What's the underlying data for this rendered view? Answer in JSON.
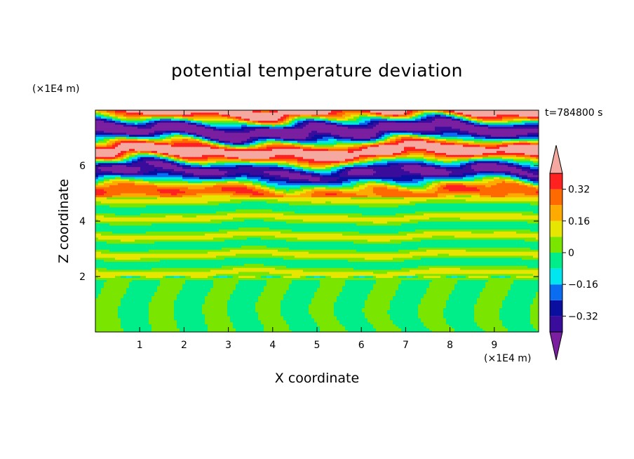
{
  "chart_data": {
    "type": "heatmap",
    "title": "potential temperature deviation",
    "xlabel": "X coordinate",
    "ylabel": "Z coordinate",
    "x_unit": "(×1E4 m)",
    "y_unit": "(×1E4 m)",
    "time_label": "t=784800 s",
    "xlim": [
      0,
      10
    ],
    "ylim": [
      0,
      8
    ],
    "x_ticks": [
      "1",
      "2",
      "3",
      "4",
      "5",
      "6",
      "7",
      "8",
      "9"
    ],
    "y_ticks": [
      "2",
      "4",
      "6"
    ],
    "colorbar": {
      "levels": [
        -0.48,
        -0.4,
        -0.32,
        -0.24,
        -0.16,
        -0.08,
        0,
        0.08,
        0.16,
        0.24,
        0.32,
        0.4,
        0.48
      ],
      "tick_labels": [
        "0.32",
        "0.16",
        "0",
        "−0.16",
        "−0.32"
      ],
      "tick_values": [
        0.32,
        0.16,
        0,
        -0.16,
        -0.32
      ],
      "colors": [
        "#7a1fa0",
        "#3a0c9c",
        "#0a0fa0",
        "#0a6cf0",
        "#00e6f0",
        "#00ee8a",
        "#7ae600",
        "#e6e600",
        "#ffaa00",
        "#ff6a00",
        "#ff2020",
        "#f4a8a0"
      ],
      "extend": "both"
    },
    "layers": [
      {
        "z_range": [
          0,
          2
        ],
        "description_values": "near-zero values; green (-0.08..0.08) with cellular plumes"
      },
      {
        "z_range": [
          2,
          4.9
        ],
        "description_values": "near-zero values; green bands"
      },
      {
        "z_range": [
          4.9,
          8
        ],
        "description_values": "strong alternating positive/negative bands from -0.48 to 0.48"
      }
    ]
  }
}
